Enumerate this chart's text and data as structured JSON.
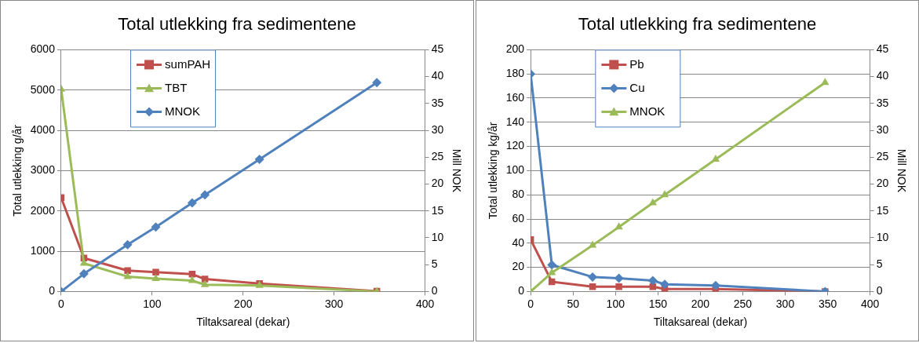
{
  "chart_data": [
    {
      "type": "line",
      "title": "Total utlekking fra sedimentene",
      "xlabel": "Tiltaksareal (dekar)",
      "ylabel": "Total utlekking g/år",
      "y2label": "Mill NOK",
      "x": [
        0,
        25,
        73,
        104,
        144,
        158,
        218,
        347
      ],
      "series": [
        {
          "name": "sumPAH",
          "color": "#c0504d",
          "marker": "square",
          "values": [
            2330,
            830,
            520,
            480,
            430,
            310,
            200,
            10
          ]
        },
        {
          "name": "TBT",
          "color": "#9bbb59",
          "marker": "triangle",
          "values": [
            5020,
            700,
            370,
            320,
            270,
            170,
            150,
            0
          ]
        },
        {
          "name": "MNOK",
          "color": "#4f81bd",
          "marker": "diamond",
          "axis": "y2",
          "values": [
            0,
            3.3,
            8.7,
            12,
            16.5,
            18,
            24.6,
            38.9
          ]
        }
      ],
      "xlim": [
        0,
        400
      ],
      "xticks": [
        0,
        100,
        200,
        300,
        400
      ],
      "ylim": [
        0,
        6000
      ],
      "yticks": [
        0,
        1000,
        2000,
        3000,
        4000,
        5000,
        6000
      ],
      "y2lim": [
        0,
        45
      ],
      "y2ticks": [
        0,
        5,
        10,
        15,
        20,
        25,
        30,
        35,
        40,
        45
      ],
      "grid": "y",
      "legend": "top left"
    },
    {
      "type": "line",
      "title": "Total utlekking fra sedimentene",
      "xlabel": "Tiltaksareal (dekar)",
      "ylabel": "Total utlekking kg/år",
      "y2label": "Mill NOK",
      "x": [
        0,
        25,
        73,
        104,
        144,
        158,
        218,
        347
      ],
      "series": [
        {
          "name": "Pb",
          "color": "#c0504d",
          "marker": "square",
          "values": [
            43,
            8,
            4,
            4,
            4,
            2,
            2,
            0
          ]
        },
        {
          "name": "Cu",
          "color": "#4f81bd",
          "marker": "diamond",
          "values": [
            180,
            22,
            12,
            11,
            9,
            6,
            5,
            0
          ]
        },
        {
          "name": "MNOK",
          "color": "#9bbb59",
          "marker": "triangle",
          "axis": "y2",
          "values": [
            0,
            3.5,
            8.6,
            12,
            16.5,
            18,
            24.6,
            38.9
          ]
        }
      ],
      "xlim": [
        0,
        400
      ],
      "xticks": [
        0,
        50,
        100,
        150,
        200,
        250,
        300,
        350,
        400
      ],
      "ylim": [
        0,
        200
      ],
      "yticks": [
        0,
        20,
        40,
        60,
        80,
        100,
        120,
        140,
        160,
        180,
        200
      ],
      "y2lim": [
        0,
        45
      ],
      "y2ticks": [
        0,
        5,
        10,
        15,
        20,
        25,
        30,
        35,
        40,
        45
      ],
      "grid": "y",
      "legend": "top left"
    }
  ]
}
